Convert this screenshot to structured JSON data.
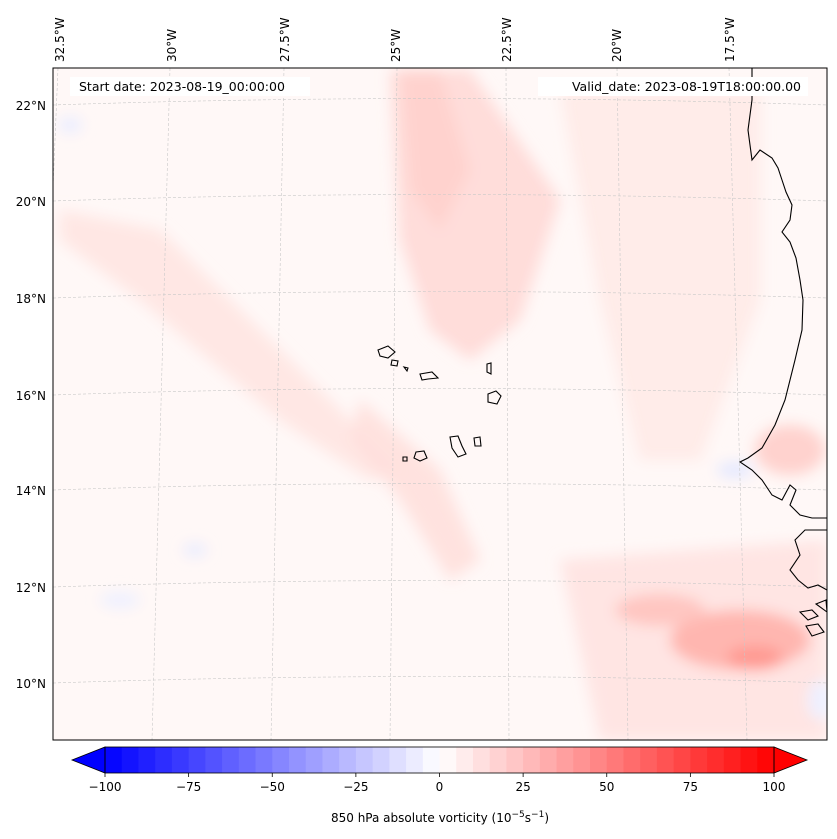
{
  "map": {
    "start_date_label": "Start date: 2023-08-19_00:00:00",
    "valid_date_label": "Valid_date: 2023-08-19T18:00:00.00",
    "lon_ticks": [
      "32.5°W",
      "30°W",
      "27.5°W",
      "25°W",
      "22.5°W",
      "20°W",
      "17.5°W"
    ],
    "lat_ticks": [
      "22°N",
      "20°N",
      "18°N",
      "16°N",
      "14°N",
      "12°N",
      "10°N"
    ],
    "features": [
      "Cape Verde Islands",
      "West African coastline"
    ],
    "field_colors": {
      "negative": "#0000ff",
      "zero": "#ffffff",
      "positive": "#ff0000"
    }
  },
  "colorbar": {
    "label_text": "850 hPa absolute vorticity (10",
    "label_exp1": "−5",
    "label_unit": "s",
    "label_exp2": "−1",
    "label_close": ")",
    "ticks": [
      "−100",
      "−75",
      "−50",
      "−25",
      "0",
      "25",
      "50",
      "75",
      "100"
    ],
    "min": -100,
    "max": 100,
    "step": 5
  }
}
